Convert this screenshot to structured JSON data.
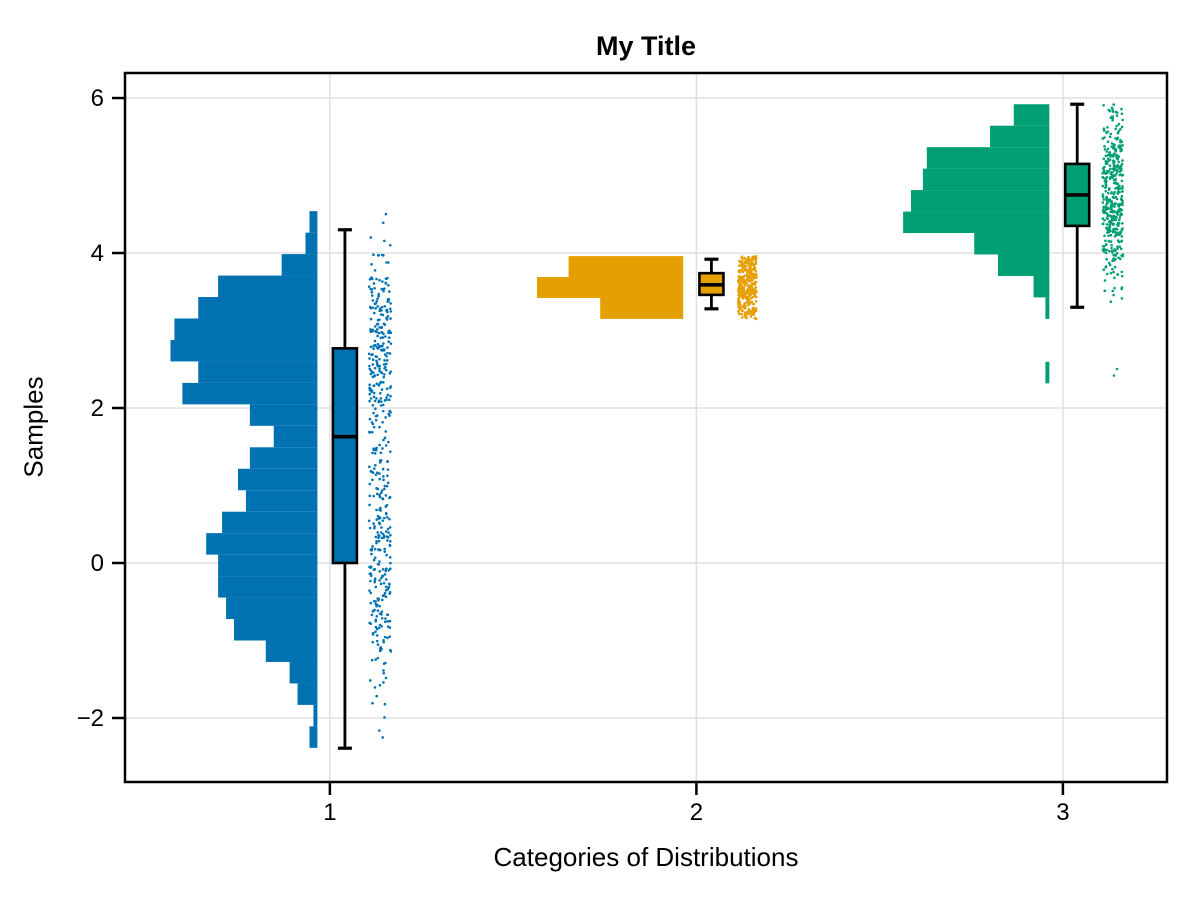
{
  "title": "My Title",
  "xlabel": "Categories of Distributions",
  "ylabel": "Samples",
  "chart_data": {
    "type": "raincloud (per-category horizontal histogram + boxplot + jittered scatter)",
    "title": "My Title",
    "xlabel": "Categories of Distributions",
    "ylabel": "Samples",
    "x_ticks": [
      1,
      2,
      3
    ],
    "y_ticks": [
      6,
      4,
      2,
      0,
      -2
    ],
    "xlim": [
      0.441,
      3.284
    ],
    "ylim": [
      -2.826,
      6.323
    ],
    "grid": true,
    "background_color": "#ffffff",
    "grid_color": "#e0e0e0",
    "frame_color": "#000000",
    "groups": [
      {
        "category": 1,
        "label": "1",
        "color": "#0072B2",
        "seed": 101,
        "hist": {
          "top": 4.54,
          "bin_width": 0.277,
          "baseline_offset": -0.034,
          "max_extent": 0.401,
          "counts": [
            2,
            3,
            9,
            25,
            30,
            36,
            37,
            30,
            34,
            17,
            11,
            17,
            20,
            18,
            24,
            28,
            25,
            25,
            23,
            21,
            13,
            7,
            5,
            1,
            2
          ]
        },
        "box": {
          "whisker_low": -2.39,
          "q1": 0.0,
          "median": 1.63,
          "q3": 2.77,
          "whisker_high": 4.3,
          "center_offset": 0.041,
          "width": 0.0655
        },
        "scatter": {
          "center_offset": 0.137,
          "width": 0.06,
          "n": 480
        }
      },
      {
        "category": 2,
        "label": "2",
        "color": "#E69F00",
        "seed": 202,
        "hist": {
          "top": 3.96,
          "bin_width": 0.27,
          "baseline_offset": -0.036,
          "max_extent": 0.399,
          "counts": [
            29,
            37,
            21
          ]
        },
        "box": {
          "whisker_low": 3.28,
          "q1": 3.46,
          "median": 3.59,
          "q3": 3.74,
          "whisker_high": 3.92,
          "center_offset": 0.041,
          "width": 0.0655
        },
        "scatter": {
          "center_offset": 0.139,
          "width": 0.05,
          "n": 330
        }
      },
      {
        "category": 3,
        "label": "3",
        "color": "#009E73",
        "seed": 303,
        "hist": {
          "top": 5.92,
          "bin_width": 0.277,
          "baseline_offset": -0.037,
          "max_extent": 0.399,
          "counts": [
            9,
            15,
            31,
            32,
            35,
            37,
            19,
            13,
            4,
            1,
            0,
            0,
            1
          ]
        },
        "box": {
          "whisker_low": 3.3,
          "q1": 4.35,
          "median": 4.75,
          "q3": 5.15,
          "whisker_high": 5.92,
          "center_offset": 0.039,
          "width": 0.0655
        },
        "scatter": {
          "center_offset": 0.136,
          "width": 0.055,
          "n": 420
        }
      }
    ]
  }
}
